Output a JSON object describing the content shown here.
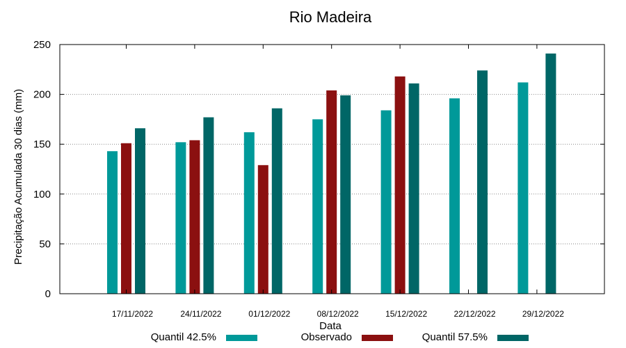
{
  "chart_data": {
    "type": "bar",
    "title": "Rio Madeira",
    "xlabel": "Data",
    "ylabel": "Precipitação Acumulada 30 dias (mm)",
    "ylim": [
      0,
      250
    ],
    "yticks": [
      0,
      50,
      100,
      150,
      200,
      250
    ],
    "grid": "horizontal dotted",
    "legend_position": "bottom",
    "categories": [
      "17/11/2022",
      "24/11/2022",
      "01/12/2022",
      "08/12/2022",
      "15/12/2022",
      "22/12/2022",
      "29/12/2022"
    ],
    "series": [
      {
        "name": "Quantil 42.5%",
        "color": "#009999",
        "values": [
          143,
          152,
          162,
          175,
          184,
          196,
          212
        ]
      },
      {
        "name": "Observado",
        "color": "#8b1010",
        "values": [
          151,
          154,
          129,
          204,
          218,
          null,
          null
        ]
      },
      {
        "name": "Quantil 57.5%",
        "color": "#006666",
        "values": [
          166,
          177,
          186,
          199,
          211,
          224,
          241
        ]
      }
    ]
  }
}
